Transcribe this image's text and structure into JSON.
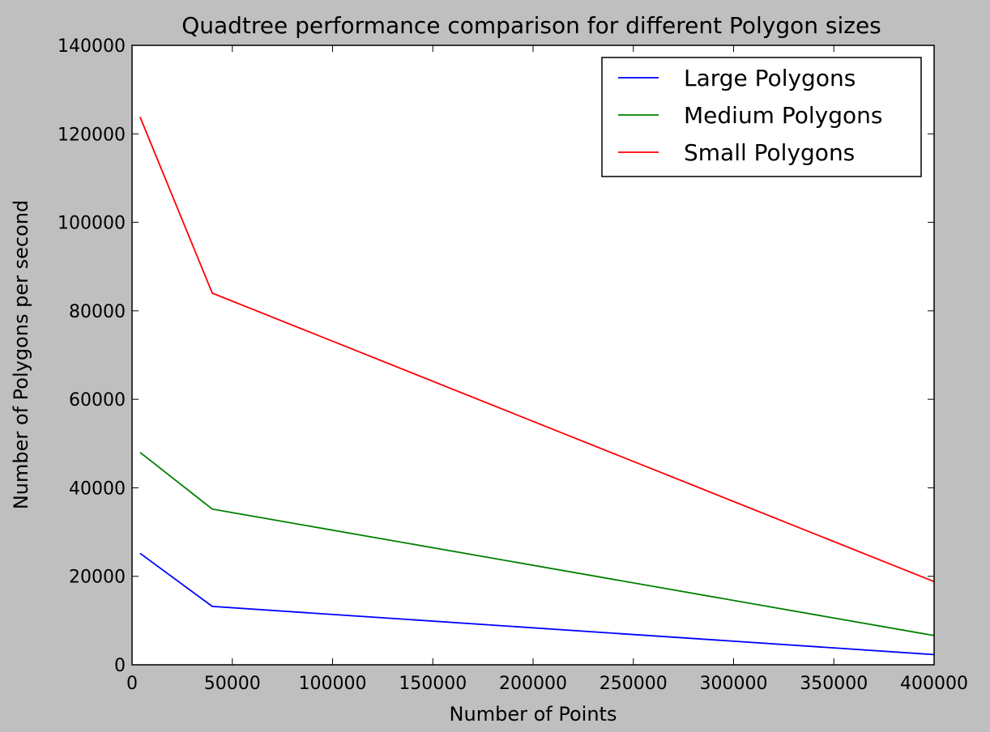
{
  "chart_data": {
    "type": "line",
    "title": "Quadtree performance comparison for different Polygon sizes",
    "xlabel": "Number of Points",
    "ylabel": "Number of Polygons per second",
    "xlim": [
      0,
      400000
    ],
    "ylim": [
      0,
      140000
    ],
    "x_ticks": [
      0,
      50000,
      100000,
      150000,
      200000,
      250000,
      300000,
      350000,
      400000
    ],
    "y_ticks": [
      0,
      20000,
      40000,
      60000,
      80000,
      100000,
      120000,
      140000
    ],
    "grid": false,
    "legend_position": "top-right",
    "series": [
      {
        "name": "Large Polygons",
        "color": "#0000ff",
        "x": [
          4000,
          40000,
          400000
        ],
        "y": [
          25200,
          13200,
          2300
        ]
      },
      {
        "name": "Medium Polygons",
        "color": "#008000",
        "x": [
          4000,
          40000,
          400000
        ],
        "y": [
          48000,
          35200,
          6600
        ]
      },
      {
        "name": "Small Polygons",
        "color": "#ff0000",
        "x": [
          4000,
          40000,
          400000
        ],
        "y": [
          123800,
          84000,
          18800
        ]
      }
    ]
  }
}
